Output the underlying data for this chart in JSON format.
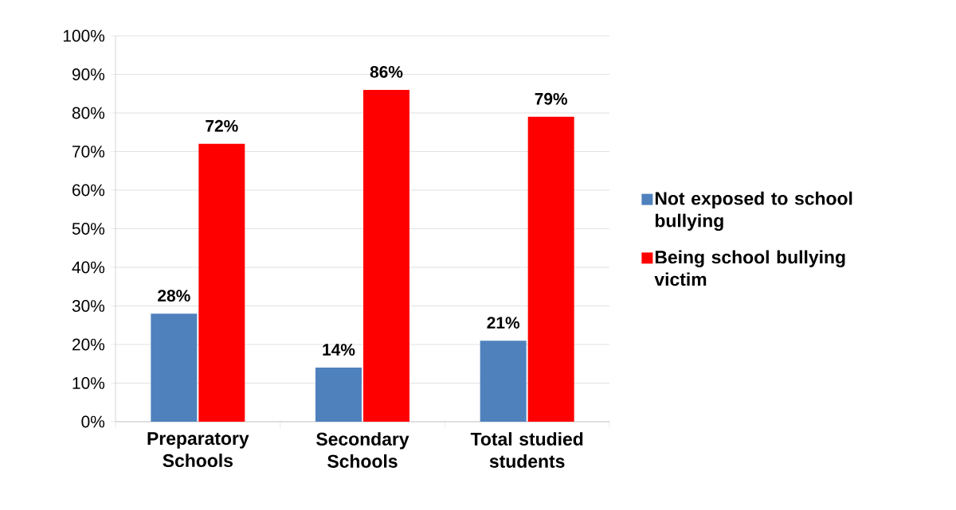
{
  "chart_data": {
    "type": "bar",
    "categories": [
      "Preparatory Schools",
      "Secondary Schools",
      "Total studied students"
    ],
    "series": [
      {
        "name": "Not  exposed to school bullying",
        "color": "#4f81bd",
        "values": [
          28,
          14,
          21
        ],
        "value_labels": [
          "28%",
          "14%",
          "21%"
        ]
      },
      {
        "name": "Being school bullying victim",
        "color": "#ff0000",
        "values": [
          72,
          86,
          79
        ],
        "value_labels": [
          "72%",
          "86%",
          "79%"
        ]
      }
    ],
    "ylim": [
      0,
      100
    ],
    "yticks": [
      {
        "value": 0,
        "label": "0%"
      },
      {
        "value": 10,
        "label": "10%"
      },
      {
        "value": 20,
        "label": "20%"
      },
      {
        "value": 30,
        "label": "30%"
      },
      {
        "value": 40,
        "label": "40%"
      },
      {
        "value": 50,
        "label": "50%"
      },
      {
        "value": 60,
        "label": "60%"
      },
      {
        "value": 70,
        "label": "70%"
      },
      {
        "value": 80,
        "label": "80%"
      },
      {
        "value": 90,
        "label": "90%"
      },
      {
        "value": 100,
        "label": "100%"
      }
    ],
    "grid": "y",
    "legend": "right"
  }
}
